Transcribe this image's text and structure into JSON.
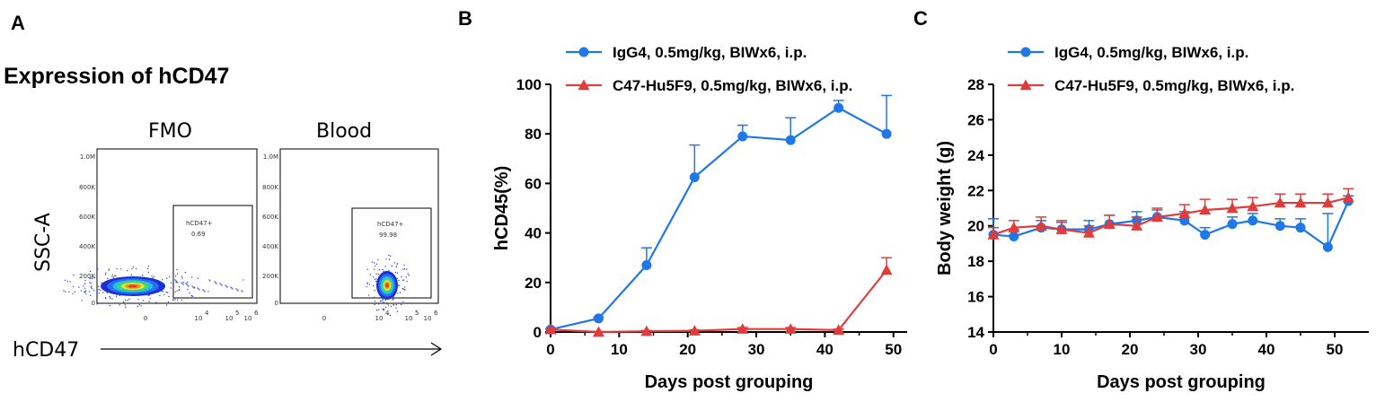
{
  "panels": {
    "a": {
      "letter": "A",
      "title": "Expression of hCD47",
      "y_axis": "SSC-A",
      "x_axis": "hCD47",
      "plots": [
        {
          "name": "FMO",
          "gate_label": "hCD47+",
          "gate_value": "0.69"
        },
        {
          "name": "Blood",
          "gate_label": "hCD47+",
          "gate_value": "99.98"
        }
      ],
      "y_ticks": [
        "1.0M",
        "800K",
        "600K",
        "400K",
        "200K",
        "0"
      ],
      "x_ticks": [
        "0",
        "10",
        "4",
        "10",
        "5",
        "10",
        "6"
      ]
    },
    "b": {
      "letter": "B"
    },
    "c": {
      "letter": "C"
    }
  },
  "chart_data": [
    {
      "type": "line",
      "panel": "B",
      "xlabel": "Days post grouping",
      "ylabel": "hCD45(%)",
      "xlim": [
        0,
        52
      ],
      "ylim": [
        0,
        100
      ],
      "x_ticks": [
        0,
        10,
        20,
        30,
        40,
        50
      ],
      "y_ticks": [
        0,
        20,
        40,
        60,
        80,
        100
      ],
      "legend_position": "top",
      "series": [
        {
          "name": "IgG4, 0.5mg/kg, BIWx6, i.p.",
          "color": "#1f77e8",
          "marker": "circle",
          "x": [
            0,
            7,
            14,
            21,
            28,
            35,
            42,
            49
          ],
          "y": [
            1,
            5.5,
            27,
            62.5,
            79,
            77.5,
            90.5,
            80
          ],
          "err": [
            0.3,
            0.5,
            7,
            13,
            4.5,
            9,
            3,
            15.5
          ]
        },
        {
          "name": "C47-Hu5F9, 0.5mg/kg, BIWx6, i.p.",
          "color": "#e03c3c",
          "marker": "triangle",
          "x": [
            0,
            7,
            14,
            21,
            28,
            35,
            42,
            49
          ],
          "y": [
            1,
            0,
            0.3,
            0.5,
            1.2,
            1.2,
            0.8,
            25
          ],
          "err": [
            0.3,
            0.2,
            0.3,
            0.4,
            0.6,
            0.6,
            0.4,
            5
          ]
        }
      ]
    },
    {
      "type": "line",
      "panel": "C",
      "xlabel": "Days post grouping",
      "ylabel": "Body weight (g)",
      "xlim": [
        0,
        55
      ],
      "ylim": [
        14,
        28
      ],
      "x_ticks": [
        0,
        10,
        20,
        30,
        40,
        50
      ],
      "y_ticks": [
        14,
        16,
        18,
        20,
        22,
        24,
        26,
        28
      ],
      "legend_position": "top",
      "series": [
        {
          "name": "IgG4, 0.5mg/kg, BIWx6, i.p.",
          "color": "#1f77e8",
          "marker": "circle",
          "x": [
            0,
            3,
            7,
            10,
            14,
            17,
            21,
            24,
            28,
            31,
            35,
            38,
            42,
            45,
            49,
            52
          ],
          "y": [
            19.5,
            19.4,
            19.9,
            19.8,
            19.8,
            20.1,
            20.3,
            20.5,
            20.3,
            19.5,
            20.1,
            20.3,
            20.0,
            19.9,
            18.8,
            21.4
          ],
          "err": [
            0.9,
            0.4,
            0.4,
            0.4,
            0.5,
            0.5,
            0.5,
            0.4,
            0.5,
            0.4,
            0.4,
            0.4,
            0.4,
            0.5,
            1.9,
            0.3
          ]
        },
        {
          "name": "C47-Hu5F9, 0.5mg/kg, BIWx6, i.p.",
          "color": "#e03c3c",
          "marker": "triangle",
          "x": [
            0,
            3,
            7,
            10,
            14,
            17,
            21,
            24,
            28,
            31,
            35,
            38,
            42,
            45,
            49,
            52
          ],
          "y": [
            19.5,
            19.9,
            20.0,
            19.8,
            19.6,
            20.1,
            20.0,
            20.5,
            20.7,
            20.9,
            21.0,
            21.1,
            21.3,
            21.3,
            21.3,
            21.6
          ],
          "err": [
            0.4,
            0.4,
            0.5,
            0.5,
            0.4,
            0.5,
            0.5,
            0.5,
            0.5,
            0.6,
            0.5,
            0.5,
            0.5,
            0.5,
            0.5,
            0.5
          ]
        }
      ]
    }
  ]
}
